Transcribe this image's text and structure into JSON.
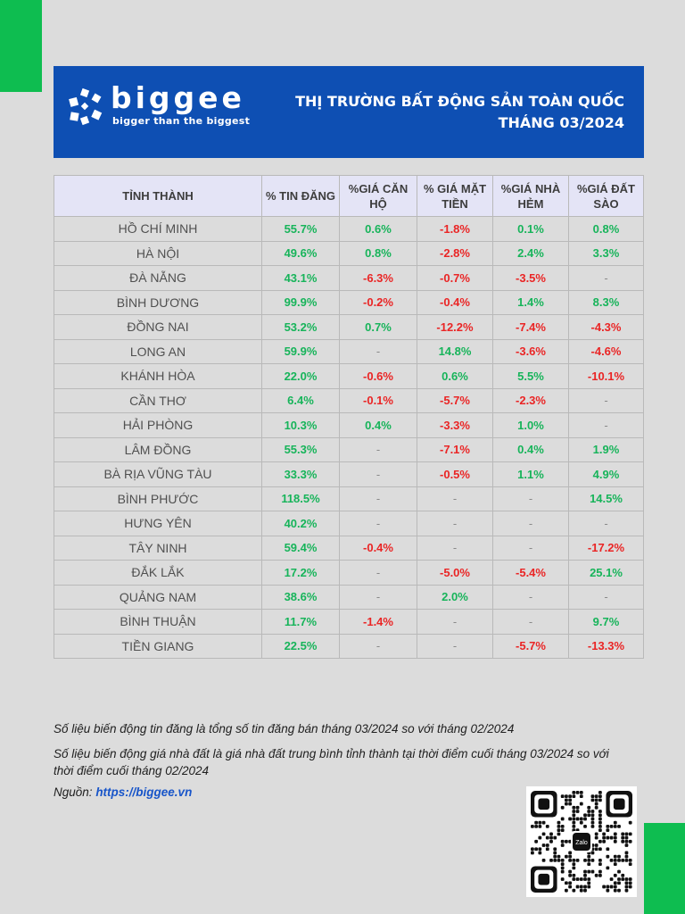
{
  "header": {
    "brand": "biggee",
    "tagline": "bigger than the biggest",
    "title": "THỊ TRƯỜNG BẤT ĐỘNG SẢN TOÀN QUỐC",
    "subtitle": "THÁNG 03/2024"
  },
  "table": {
    "columns": [
      "TỈNH THÀNH",
      "% TIN ĐĂNG",
      "%GIÁ CĂN HỘ",
      "% GIÁ MẶT TIỀN",
      "%GIÁ NHÀ HẺM",
      "%GIÁ ĐẤT SÀO"
    ],
    "rows": [
      [
        "HỒ CHÍ MINH",
        "55.7%",
        "0.6%",
        "-1.8%",
        "0.1%",
        "0.8%"
      ],
      [
        "HÀ NỘI",
        "49.6%",
        "0.8%",
        "-2.8%",
        "2.4%",
        "3.3%"
      ],
      [
        "ĐÀ NẴNG",
        "43.1%",
        "-6.3%",
        "-0.7%",
        "-3.5%",
        "-"
      ],
      [
        "BÌNH DƯƠNG",
        "99.9%",
        "-0.2%",
        "-0.4%",
        "1.4%",
        "8.3%"
      ],
      [
        "ĐỒNG NAI",
        "53.2%",
        "0.7%",
        "-12.2%",
        "-7.4%",
        "-4.3%"
      ],
      [
        "LONG AN",
        "59.9%",
        "-",
        "14.8%",
        "-3.6%",
        "-4.6%"
      ],
      [
        "KHÁNH HÒA",
        "22.0%",
        "-0.6%",
        "0.6%",
        "5.5%",
        "-10.1%"
      ],
      [
        "CẦN THƠ",
        "6.4%",
        "-0.1%",
        "-5.7%",
        "-2.3%",
        "-"
      ],
      [
        "HẢI PHÒNG",
        "10.3%",
        "0.4%",
        "-3.3%",
        "1.0%",
        "-"
      ],
      [
        "LÂM ĐỒNG",
        "55.3%",
        "-",
        "-7.1%",
        "0.4%",
        "1.9%"
      ],
      [
        "BÀ RỊA VŨNG TÀU",
        "33.3%",
        "-",
        "-0.5%",
        "1.1%",
        "4.9%"
      ],
      [
        "BÌNH PHƯỚC",
        "118.5%",
        "-",
        "-",
        "-",
        "14.5%"
      ],
      [
        "HƯNG YÊN",
        "40.2%",
        "-",
        "-",
        "-",
        "-"
      ],
      [
        "TÂY NINH",
        "59.4%",
        "-0.4%",
        "-",
        "-",
        "-17.2%"
      ],
      [
        "ĐẮK LẮK",
        "17.2%",
        "-",
        "-5.0%",
        "-5.4%",
        "25.1%"
      ],
      [
        "QUẢNG NAM",
        "38.6%",
        "-",
        "2.0%",
        "-",
        "-"
      ],
      [
        "BÌNH THUẬN",
        "11.7%",
        "-1.4%",
        "-",
        "-",
        "9.7%"
      ],
      [
        "TIỀN GIANG",
        "22.5%",
        "-",
        "-",
        "-5.7%",
        "-13.3%"
      ]
    ]
  },
  "notes": {
    "note1": "Số liệu biến động tin đăng là tổng số tin đăng bán tháng 03/2024 so với tháng 02/2024",
    "note2": "Số liệu biến động giá nhà đất là giá nhà đất trung bình tỉnh thành tại thời điểm cuối tháng 03/2024 so với thời điểm cuối tháng 02/2024",
    "source_label": "Nguồn:",
    "source_link": "https://biggee.vn"
  },
  "qr": {
    "center_label": "Zalo"
  },
  "colors": {
    "banner": "#0e4fb3",
    "accent_green": "#0ebd50",
    "positive": "#17b45a",
    "negative": "#ea2525",
    "header_row": "#e4e4f6"
  }
}
